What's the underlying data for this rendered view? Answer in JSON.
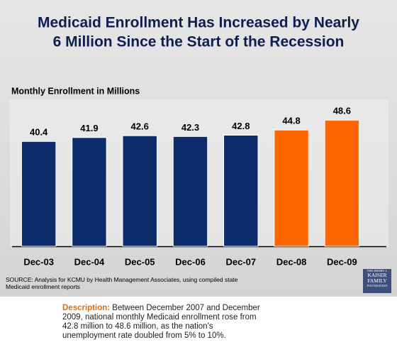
{
  "chart_data": {
    "type": "bar",
    "title": [
      "Medicaid Enrollment Has Increased by Nearly",
      "6 Million Since the Start of the Recession"
    ],
    "subtitle": "Monthly Enrollment in Millions",
    "categories": [
      "Dec-03",
      "Dec-04",
      "Dec-05",
      "Dec-06",
      "Dec-07",
      "Dec-08",
      "Dec-09"
    ],
    "values": [
      40.4,
      41.9,
      42.6,
      42.3,
      42.8,
      44.8,
      48.6
    ],
    "colors": [
      "#0d2c6b",
      "#0d2c6b",
      "#0d2c6b",
      "#0d2c6b",
      "#0d2c6b",
      "#ff6600",
      "#ff6600"
    ],
    "ylim": [
      0,
      67
    ]
  },
  "source": "SOURCE:  Analysis for KCMU by Health Management Associates, using compiled state Medicaid enrollment reports",
  "logo": [
    "THE HENRY J.",
    "KAISER",
    "FAMILY",
    "FOUNDATION"
  ],
  "description": {
    "label": "Description:",
    "text": "Between December 2007 and December 2009, national monthly Medicaid enrollment rose from 42.8 million to 48.6 million, as the nation's unemployment rate doubled from 5% to 10%."
  }
}
